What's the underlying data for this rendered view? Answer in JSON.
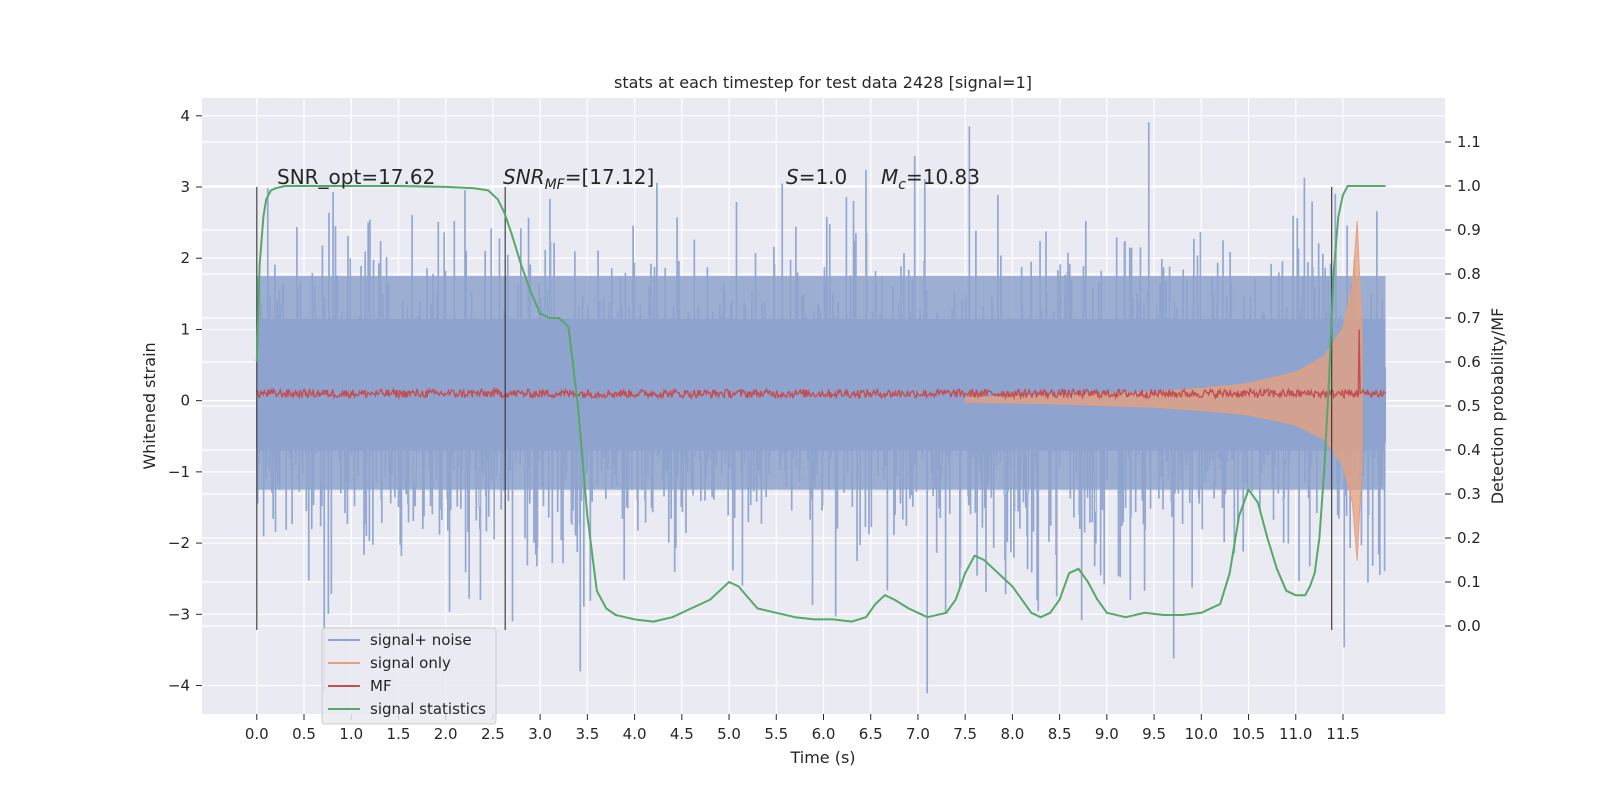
{
  "chart_data": {
    "type": "line",
    "title": "stats at each timestep for test data 2428 [signal=1]",
    "xlabel": "Time (s)",
    "ylabel_left": "Whitened strain",
    "ylabel_right": "Detection probability/MF",
    "xlim": [
      -0.58,
      12.58
    ],
    "ylim_left": [
      -4.4,
      4.25
    ],
    "ylim_right": [
      -0.2,
      1.2
    ],
    "x_ticks": [
      "0.0",
      "0.5",
      "1.0",
      "1.5",
      "2.0",
      "2.5",
      "3.0",
      "3.5",
      "4.0",
      "4.5",
      "5.0",
      "5.5",
      "6.0",
      "6.5",
      "7.0",
      "7.5",
      "8.0",
      "8.5",
      "9.0",
      "9.5",
      "10.0",
      "10.5",
      "11.0",
      "11.5"
    ],
    "y_left_ticks": [
      "4",
      "3",
      "2",
      "1",
      "0",
      "−1",
      "−2",
      "−3",
      "−4"
    ],
    "y_right_ticks": [
      "1.1",
      "1.0",
      "0.9",
      "0.8",
      "0.7",
      "0.6",
      "0.5",
      "0.4",
      "0.3",
      "0.2",
      "0.1",
      "0.0"
    ],
    "grid": true,
    "legend_position": "bottom-left",
    "annotations": {
      "snr_opt": "SNR_opt=17.62",
      "snr_mf_italic": "SNR",
      "snr_mf_sub": "MF",
      "snr_mf_value": "=[17.12]",
      "s_italic": "S",
      "s_value": "=1.0",
      "mc_italic": "M",
      "mc_sub": "c",
      "mc_value": "=10.83"
    },
    "vertical_lines": [
      0.0,
      2.63,
      11.38
    ],
    "series": [
      {
        "name": "signal+ noise",
        "color": "#8ea3cd",
        "axis": "left",
        "time_range": [
          0.0,
          11.95
        ],
        "noise_sigma": 1.0,
        "envelope_quantiles": {
          "band_outer": [
            -1.25,
            1.75
          ],
          "band_inner": [
            -0.7,
            1.15
          ]
        }
      },
      {
        "name": "signal only",
        "color": "#e8a07a",
        "axis": "left",
        "envelope_t": [
          7.5,
          8.5,
          9.5,
          10.0,
          10.5,
          11.0,
          11.3,
          11.5,
          11.6,
          11.65,
          11.7
        ],
        "envelope_amp": [
          0.02,
          0.05,
          0.1,
          0.15,
          0.22,
          0.38,
          0.6,
          1.0,
          1.6,
          2.5,
          1.0
        ]
      },
      {
        "name": "MF",
        "color": "#c44e52",
        "axis": "left",
        "baseline": 0.1,
        "spike_t": 11.67,
        "spike_value": 1.0
      },
      {
        "name": "signal statistics",
        "color": "#55a868",
        "axis": "right",
        "x": [
          0.0,
          0.03,
          0.07,
          0.1,
          0.15,
          0.2,
          0.3,
          0.5,
          1.0,
          1.5,
          2.0,
          2.3,
          2.45,
          2.55,
          2.62,
          2.7,
          2.8,
          2.9,
          3.0,
          3.1,
          3.2,
          3.3,
          3.4,
          3.5,
          3.6,
          3.7,
          3.8,
          3.9,
          4.0,
          4.2,
          4.4,
          4.6,
          4.8,
          4.9,
          5.0,
          5.1,
          5.3,
          5.5,
          5.7,
          5.9,
          6.1,
          6.3,
          6.45,
          6.55,
          6.65,
          6.75,
          6.9,
          7.1,
          7.3,
          7.4,
          7.5,
          7.6,
          7.7,
          7.8,
          7.9,
          8.0,
          8.1,
          8.2,
          8.3,
          8.4,
          8.5,
          8.6,
          8.7,
          8.8,
          8.9,
          9.0,
          9.2,
          9.4,
          9.6,
          9.8,
          10.0,
          10.2,
          10.3,
          10.4,
          10.5,
          10.6,
          10.7,
          10.8,
          10.9,
          11.0,
          11.1,
          11.15,
          11.2,
          11.25,
          11.3,
          11.35,
          11.4,
          11.45,
          11.5,
          11.55,
          11.6,
          11.7,
          11.8,
          11.95
        ],
        "y": [
          0.6,
          0.82,
          0.93,
          0.97,
          0.99,
          0.995,
          1.0,
          1.0,
          1.0,
          1.0,
          0.998,
          0.995,
          0.99,
          0.97,
          0.94,
          0.89,
          0.82,
          0.76,
          0.71,
          0.7,
          0.7,
          0.68,
          0.5,
          0.25,
          0.08,
          0.04,
          0.025,
          0.02,
          0.015,
          0.01,
          0.02,
          0.04,
          0.06,
          0.08,
          0.1,
          0.09,
          0.04,
          0.03,
          0.02,
          0.015,
          0.015,
          0.01,
          0.02,
          0.05,
          0.07,
          0.06,
          0.04,
          0.02,
          0.03,
          0.06,
          0.12,
          0.16,
          0.15,
          0.13,
          0.11,
          0.09,
          0.06,
          0.03,
          0.02,
          0.03,
          0.06,
          0.12,
          0.13,
          0.1,
          0.06,
          0.03,
          0.02,
          0.03,
          0.025,
          0.025,
          0.03,
          0.05,
          0.12,
          0.25,
          0.31,
          0.28,
          0.2,
          0.13,
          0.08,
          0.07,
          0.07,
          0.09,
          0.12,
          0.2,
          0.35,
          0.55,
          0.8,
          0.93,
          0.98,
          1.0,
          1.0,
          1.0,
          1.0,
          1.0
        ]
      }
    ]
  }
}
